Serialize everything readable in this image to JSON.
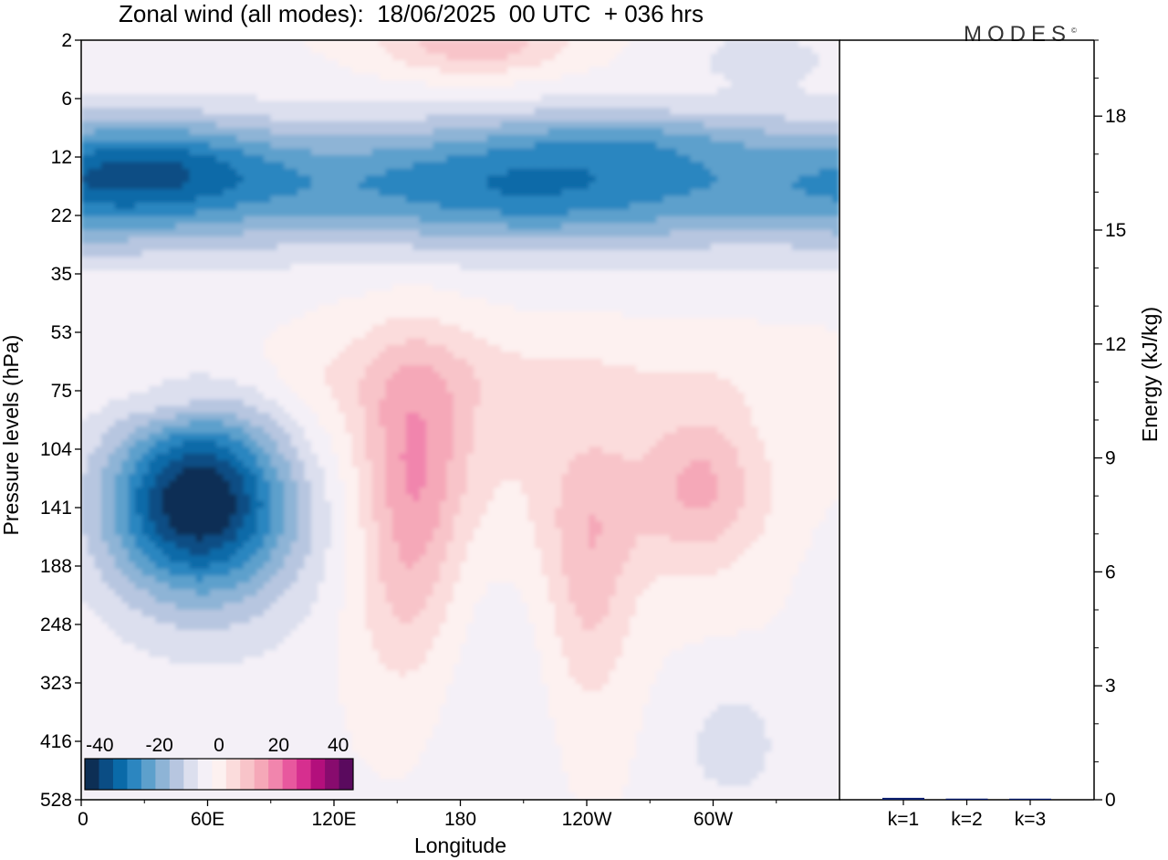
{
  "title": "Zonal wind (all modes):  18/06/2025  00 UTC  + 036 hrs",
  "brand": {
    "text": "MODES",
    "mark": "©"
  },
  "colors": {
    "scale": [
      "#0d2f55",
      "#0b4d84",
      "#0a6aa8",
      "#2c86c0",
      "#5da0cc",
      "#8eb4d6",
      "#b7c6e0",
      "#dcdfee",
      "#f4f0f7",
      "#fdf1f0",
      "#fbdcdc",
      "#f8c4c9",
      "#f5a8b8",
      "#f185ad",
      "#e8589e",
      "#d62f8f",
      "#b30f7c",
      "#880b6e",
      "#5a0a5e"
    ],
    "bar_fill": "#0b1e6e"
  },
  "chart_data": [
    {
      "type": "heatmap",
      "title": "",
      "xlabel": "Longitude",
      "ylabel": "Pressure levels (hPa)",
      "x_ticks": [
        "0",
        "60E",
        "120E",
        "180",
        "120W",
        "60W"
      ],
      "y_ticks": [
        "2",
        "6",
        "12",
        "22",
        "35",
        "53",
        "75",
        "104",
        "141",
        "188",
        "248",
        "323",
        "416",
        "528"
      ],
      "colorbar": {
        "ticks": [
          "-40",
          "-20",
          "0",
          "20",
          "40"
        ],
        "range": [
          -45,
          45
        ],
        "step": 5
      },
      "features": [
        {
          "name": "stratospheric easterly band",
          "pressure_range_hPa": [
            6,
            35
          ],
          "min_value": -35
        },
        {
          "name": "easterly jet core near 50E",
          "pressure_hPa": 141,
          "min_value": -40
        },
        {
          "name": "westerly maximum near 150E",
          "pressure_hPa": 130,
          "max_value": 15
        },
        {
          "name": "westerly maximum near 60W",
          "pressure_hPa": 130,
          "max_value": 15
        },
        {
          "name": "upper westerly near 180",
          "pressure_hPa": 2,
          "max_value": 15
        }
      ]
    },
    {
      "type": "bar",
      "ylabel": "Energy (kJ/kg)",
      "categories": [
        "k=1",
        "k=2",
        "k=3"
      ],
      "values": [
        0.05,
        0.03,
        0.01
      ],
      "ylim": [
        0,
        20
      ],
      "y_ticks": [
        "0",
        "3",
        "6",
        "9",
        "12",
        "15",
        "18"
      ]
    }
  ]
}
